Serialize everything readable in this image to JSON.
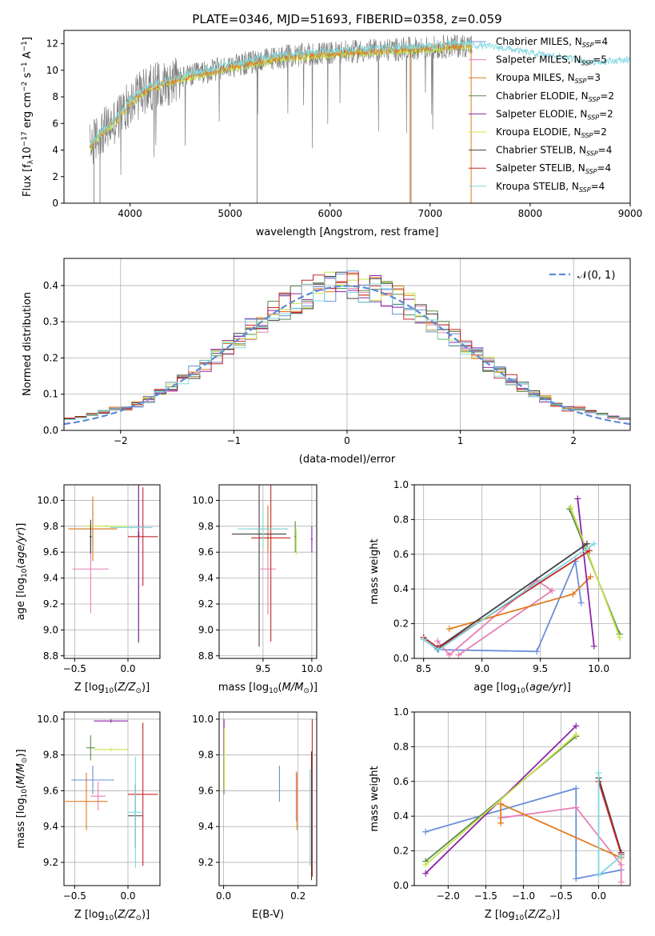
{
  "figure": {
    "title": "PLATE=0346, MJD=51693, FIBERID=0358, z=0.059"
  },
  "colors": {
    "Chabrier MILES": "#6a8fd8",
    "Salpeter MILES": "#e77fb4",
    "Kroupa MILES": "#e07b1c",
    "Chabrier ELODIE": "#5b8c4e",
    "Salpeter ELODIE": "#8e24aa",
    "Kroupa ELODIE": "#c8e34c",
    "Chabrier STELIB": "#404040",
    "Salpeter STELIB": "#c62828",
    "Kroupa STELIB": "#80d8e0",
    "data": "#7f7f7f",
    "gauss": "#5b8bd6"
  },
  "chart_data": [
    {
      "id": "spectrum",
      "type": "line",
      "xlabel": "wavelength [Angstrom, rest frame]",
      "ylabel": "Flux [f_λ 10^-17 erg cm^-2 s^-1 A^-1]",
      "xlim": [
        3340,
        9000
      ],
      "ylim": [
        0,
        13
      ],
      "xticks": [
        4000,
        5000,
        6000,
        7000,
        8000,
        9000
      ],
      "yticks": [
        0,
        2,
        4,
        6,
        8,
        10,
        12
      ],
      "legend_position": "right",
      "legend": [
        {
          "label": "Chabrier MILES, N",
          "sub": "SSP",
          "eq": "=4",
          "key": "Chabrier MILES"
        },
        {
          "label": "Salpeter MILES, N",
          "sub": "SSP",
          "eq": "=5",
          "key": "Salpeter MILES"
        },
        {
          "label": "Kroupa MILES, N",
          "sub": "SSP",
          "eq": "=3",
          "key": "Kroupa MILES"
        },
        {
          "label": "Chabrier ELODIE, N",
          "sub": "SSP",
          "eq": "=2",
          "key": "Chabrier ELODIE"
        },
        {
          "label": "Salpeter ELODIE, N",
          "sub": "SSP",
          "eq": "=2",
          "key": "Salpeter ELODIE"
        },
        {
          "label": "Kroupa ELODIE, N",
          "sub": "SSP",
          "eq": "=2",
          "key": "Kroupa ELODIE"
        },
        {
          "label": "Chabrier STELIB, N",
          "sub": "SSP",
          "eq": "=4",
          "key": "Chabrier STELIB"
        },
        {
          "label": "Salpeter STELIB, N",
          "sub": "SSP",
          "eq": "=4",
          "key": "Salpeter STELIB"
        },
        {
          "label": "Kroupa STELIB, N",
          "sub": "SSP",
          "eq": "=4",
          "key": "Kroupa STELIB"
        }
      ],
      "continuum": {
        "x": [
          3600,
          3700,
          3800,
          3900,
          4000,
          4200,
          4500,
          5000,
          5500,
          6000,
          6500,
          7000,
          7400
        ],
        "y": [
          4.3,
          5.2,
          5.8,
          6.6,
          7.6,
          8.7,
          9.4,
          10.3,
          11.0,
          11.3,
          11.5,
          11.7,
          11.9
        ]
      },
      "model_tail": {
        "x": [
          7400,
          7600,
          7800,
          8000,
          8200,
          8400,
          8600,
          8800,
          9000
        ],
        "y": [
          11.9,
          11.8,
          11.6,
          11.3,
          11.1,
          10.9,
          10.6,
          10.7,
          10.8
        ]
      }
    },
    {
      "id": "residuals",
      "type": "histogram",
      "xlabel": "(data-model)/error",
      "ylabel": "Normed distribution",
      "xlim": [
        -2.5,
        2.5
      ],
      "ylim": [
        0,
        0.475
      ],
      "xticks": [
        -2,
        -1,
        0,
        1,
        2
      ],
      "yticks": [
        0.0,
        0.1,
        0.2,
        0.3,
        0.4
      ],
      "legend": "𝒩(0, 1)",
      "legend_position": "top-right",
      "bin_width": 0.1
    },
    {
      "id": "age_vs_Z",
      "type": "errorbar",
      "xlabel": "Z [log10(Z/Z☉)]",
      "ylabel": "age  [log10(age/yr)]",
      "xlim": [
        -0.6,
        0.3
      ],
      "ylim": [
        8.78,
        10.12
      ],
      "xticks": [
        -0.5,
        0.0
      ],
      "yticks": [
        8.8,
        9.0,
        9.2,
        9.4,
        9.6,
        9.8,
        10.0
      ],
      "points": [
        {
          "key": "Chabrier MILES",
          "x": -0.33,
          "xerr": 0.22,
          "y": 9.78,
          "yerr": 0.14
        },
        {
          "key": "Salpeter MILES",
          "x": -0.35,
          "xerr": 0.17,
          "y": 9.47,
          "yerr": 0.34
        },
        {
          "key": "Kroupa MILES",
          "x": -0.33,
          "xerr": 0.23,
          "y": 9.78,
          "yerr": 0.25
        },
        {
          "key": "Chabrier ELODIE",
          "x": 0.1,
          "xerr": 0.01,
          "y": 9.75,
          "yerr": 0.85
        },
        {
          "key": "Salpeter ELODIE",
          "x": 0.1,
          "xerr": 0.01,
          "y": 9.73,
          "yerr": 0.82
        },
        {
          "key": "Kroupa ELODIE",
          "x": -0.2,
          "xerr": 0.2,
          "y": 9.8,
          "yerr": 0.01
        },
        {
          "key": "Chabrier STELIB",
          "x": -0.35,
          "xerr": 0.01,
          "y": 9.72,
          "yerr": 0.13
        },
        {
          "key": "Salpeter STELIB",
          "x": 0.14,
          "xerr": 0.14,
          "y": 9.72,
          "yerr": 0.38
        },
        {
          "key": "Kroupa STELIB",
          "x": 0.03,
          "xerr": 0.2,
          "y": 9.79,
          "yerr": 0.01
        }
      ]
    },
    {
      "id": "age_vs_mass",
      "type": "errorbar",
      "xlabel": "mass [log10(M/M☉)]",
      "ylabel": "",
      "xlim": [
        9.05,
        10.05
      ],
      "ylim": [
        8.78,
        10.12
      ],
      "xticks": [
        9.5,
        10.0
      ],
      "yticks": [
        8.8,
        9.0,
        9.2,
        9.4,
        9.6,
        9.8,
        10.0
      ],
      "points": [
        {
          "key": "Chabrier MILES",
          "x": 9.55,
          "xerr": 0.12,
          "y": 9.78,
          "yerr": 0.15
        },
        {
          "key": "Salpeter MILES",
          "x": 9.55,
          "xerr": 0.08,
          "y": 9.47,
          "yerr": 0.35
        },
        {
          "key": "Kroupa MILES",
          "x": 9.55,
          "xerr": 0.2,
          "y": 9.78,
          "yerr": 0.18
        },
        {
          "key": "Chabrier ELODIE",
          "x": 9.83,
          "xerr": 0.01,
          "y": 9.72,
          "yerr": 0.12
        },
        {
          "key": "Salpeter ELODIE",
          "x": 10.0,
          "xerr": 0.01,
          "y": 9.7,
          "yerr": 0.1
        },
        {
          "key": "Kroupa ELODIE",
          "x": 9.84,
          "xerr": 0.01,
          "y": 9.68,
          "yerr": 0.1
        },
        {
          "key": "Chabrier STELIB",
          "x": 9.46,
          "xerr": 0.28,
          "y": 9.74,
          "yerr": 0.87
        },
        {
          "key": "Salpeter STELIB",
          "x": 9.58,
          "xerr": 0.2,
          "y": 9.71,
          "yerr": 0.8
        },
        {
          "key": "Kroupa STELIB",
          "x": 9.5,
          "xerr": 0.26,
          "y": 9.78,
          "yerr": 0.15
        }
      ]
    },
    {
      "id": "weight_vs_age",
      "type": "line",
      "xlabel": "age  [log10(age/yr)]",
      "ylabel": "mass weight",
      "xlim": [
        8.42,
        10.27
      ],
      "ylim": [
        0,
        1
      ],
      "xticks": [
        8.5,
        9.0,
        9.5,
        10.0
      ],
      "yticks": [
        0.0,
        0.2,
        0.4,
        0.6,
        0.8,
        1.0
      ],
      "series": [
        {
          "key": "Chabrier MILES",
          "x": [
            8.5,
            8.62,
            9.47,
            9.8,
            9.85
          ],
          "y": [
            0.11,
            0.05,
            0.04,
            0.56,
            0.32
          ]
        },
        {
          "key": "Salpeter MILES",
          "x": [
            8.62,
            8.72,
            9.47,
            9.6,
            8.8
          ],
          "y": [
            0.1,
            0.02,
            0.45,
            0.39,
            0.02
          ]
        },
        {
          "key": "Kroupa MILES",
          "x": [
            8.72,
            9.78,
            9.93
          ],
          "y": [
            0.17,
            0.37,
            0.47
          ]
        },
        {
          "key": "Chabrier ELODIE",
          "x": [
            9.75,
            10.18
          ],
          "y": [
            0.86,
            0.14
          ]
        },
        {
          "key": "Salpeter ELODIE",
          "x": [
            9.82,
            9.96
          ],
          "y": [
            0.92,
            0.07
          ]
        },
        {
          "key": "Kroupa ELODIE",
          "x": [
            9.76,
            10.18
          ],
          "y": [
            0.87,
            0.12
          ]
        },
        {
          "key": "Chabrier STELIB",
          "x": [
            8.5,
            8.62,
            9.9
          ],
          "y": [
            0.12,
            0.06,
            0.66
          ]
        },
        {
          "key": "Salpeter STELIB",
          "x": [
            8.5,
            8.63,
            9.92
          ],
          "y": [
            0.12,
            0.06,
            0.62
          ]
        },
        {
          "key": "Kroupa STELIB",
          "x": [
            8.5,
            8.63,
            9.96
          ],
          "y": [
            0.11,
            0.05,
            0.66
          ]
        }
      ]
    },
    {
      "id": "mass_vs_Z",
      "type": "errorbar",
      "xlabel": "Z [log10(Z/Z☉)]",
      "ylabel": "mass [log10(M/M☉)]",
      "xlim": [
        -0.6,
        0.3
      ],
      "ylim": [
        9.07,
        10.04
      ],
      "xticks": [
        -0.5,
        0.0
      ],
      "yticks": [
        9.2,
        9.4,
        9.6,
        9.8,
        10.0
      ],
      "points": [
        {
          "key": "Chabrier MILES",
          "x": -0.33,
          "xerr": 0.2,
          "y": 9.66,
          "yerr": 0.08
        },
        {
          "key": "Salpeter MILES",
          "x": -0.28,
          "xerr": 0.07,
          "y": 9.57,
          "yerr": 0.08
        },
        {
          "key": "Kroupa MILES",
          "x": -0.39,
          "xerr": 0.2,
          "y": 9.54,
          "yerr": 0.16
        },
        {
          "key": "Chabrier ELODIE",
          "x": -0.35,
          "xerr": 0.04,
          "y": 9.84,
          "yerr": 0.07
        },
        {
          "key": "Salpeter ELODIE",
          "x": -0.16,
          "xerr": 0.16,
          "y": 9.99,
          "yerr": 0.01
        },
        {
          "key": "Kroupa ELODIE",
          "x": -0.16,
          "xerr": 0.16,
          "y": 9.83,
          "yerr": 0.01
        },
        {
          "key": "Chabrier STELIB",
          "x": 0.07,
          "xerr": 0.07,
          "y": 9.46,
          "yerr": 0.18
        },
        {
          "key": "Salpeter STELIB",
          "x": 0.14,
          "xerr": 0.14,
          "y": 9.58,
          "yerr": 0.4
        },
        {
          "key": "Kroupa STELIB",
          "x": 0.07,
          "xerr": 0.07,
          "y": 9.48,
          "yerr": 0.31
        }
      ]
    },
    {
      "id": "mass_vs_ebv",
      "type": "errorbar",
      "xlabel": "E(B-V)",
      "ylabel": "",
      "xlim": [
        -0.012,
        0.25
      ],
      "ylim": [
        9.07,
        10.04
      ],
      "xticks": [
        0.0,
        0.2
      ],
      "yticks": [
        9.2,
        9.4,
        9.6,
        9.8,
        10.0
      ],
      "points": [
        {
          "key": "Chabrier MILES",
          "x": 0.15,
          "xerr": 0.0,
          "y": 9.64,
          "yerr": 0.1
        },
        {
          "key": "Salpeter MILES",
          "x": 0.195,
          "xerr": 0.0,
          "y": 9.57,
          "yerr": 0.14
        },
        {
          "key": "Kroupa MILES",
          "x": 0.197,
          "xerr": 0.0,
          "y": 9.54,
          "yerr": 0.16
        },
        {
          "key": "Chabrier ELODIE",
          "x": 0.001,
          "xerr": 0.0,
          "y": 9.79,
          "yerr": 0.21
        },
        {
          "key": "Salpeter ELODIE",
          "x": 0.001,
          "xerr": 0.0,
          "y": 9.9,
          "yerr": 0.1
        },
        {
          "key": "Kroupa ELODIE",
          "x": 0.002,
          "xerr": 0.0,
          "y": 9.78,
          "yerr": 0.17
        },
        {
          "key": "Chabrier STELIB",
          "x": 0.236,
          "xerr": 0.0,
          "y": 9.46,
          "yerr": 0.36
        },
        {
          "key": "Salpeter STELIB",
          "x": 0.238,
          "xerr": 0.0,
          "y": 9.56,
          "yerr": 0.44
        },
        {
          "key": "Kroupa STELIB",
          "x": 0.232,
          "xerr": 0.0,
          "y": 9.45,
          "yerr": 0.27
        }
      ]
    },
    {
      "id": "weight_vs_Z",
      "type": "line",
      "xlabel": "Z [log10(Z/Z☉)]",
      "ylabel": "mass weight",
      "xlim": [
        -2.45,
        0.42
      ],
      "ylim": [
        0,
        1
      ],
      "xticks": [
        -2.0,
        -1.5,
        -1.0,
        -0.5,
        0.0
      ],
      "yticks": [
        0.0,
        0.2,
        0.4,
        0.6,
        0.8,
        1.0
      ],
      "series": [
        {
          "key": "Chabrier MILES",
          "x": [
            -2.3,
            -0.3,
            -0.3,
            0.3
          ],
          "y": [
            0.31,
            0.56,
            0.04,
            0.09
          ]
        },
        {
          "key": "Salpeter MILES",
          "x": [
            -1.3,
            -0.3,
            0.3,
            0.3
          ],
          "y": [
            0.39,
            0.45,
            0.12,
            0.02
          ]
        },
        {
          "key": "Kroupa MILES",
          "x": [
            -1.3,
            -1.3,
            0.3
          ],
          "y": [
            0.36,
            0.47,
            0.16
          ]
        },
        {
          "key": "Chabrier ELODIE",
          "x": [
            -2.3,
            -0.3
          ],
          "y": [
            0.14,
            0.86
          ]
        },
        {
          "key": "Salpeter ELODIE",
          "x": [
            -2.3,
            -0.3
          ],
          "y": [
            0.07,
            0.92
          ]
        },
        {
          "key": "Kroupa ELODIE",
          "x": [
            -2.3,
            -0.3
          ],
          "y": [
            0.12,
            0.87
          ]
        },
        {
          "key": "Chabrier STELIB",
          "x": [
            0.0,
            0.3
          ],
          "y": [
            0.62,
            0.19
          ]
        },
        {
          "key": "Salpeter STELIB",
          "x": [
            0.0,
            0.3
          ],
          "y": [
            0.6,
            0.18
          ]
        },
        {
          "key": "Kroupa STELIB",
          "x": [
            0.0,
            0.0,
            0.3
          ],
          "y": [
            0.65,
            0.06,
            0.17
          ]
        }
      ]
    }
  ]
}
